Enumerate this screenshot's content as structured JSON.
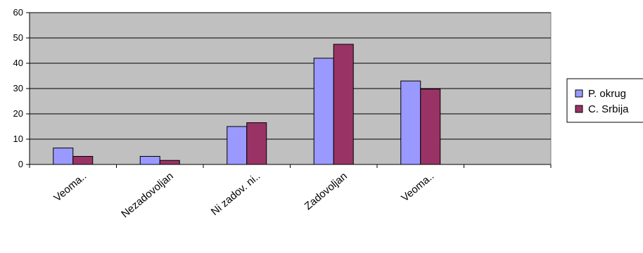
{
  "chart_data": {
    "type": "bar",
    "categories": [
      "Veoma..",
      "Nezadovoljan",
      "Ni zadov. ni..",
      "Zadovoljan",
      "Veoma..",
      ""
    ],
    "series": [
      {
        "name": "P. okrug",
        "values": [
          6.5,
          3.2,
          15,
          42,
          33,
          0
        ],
        "color": "#9999ff"
      },
      {
        "name": "C. Srbija",
        "values": [
          3.2,
          1.6,
          16.5,
          47.5,
          29.8,
          0
        ],
        "color": "#993366"
      }
    ],
    "ylim": [
      0,
      60
    ],
    "yticks": [
      0,
      10,
      20,
      30,
      40,
      50,
      60
    ],
    "grid": true,
    "plot_background": "#c0c0c0",
    "legend_position": "right"
  }
}
